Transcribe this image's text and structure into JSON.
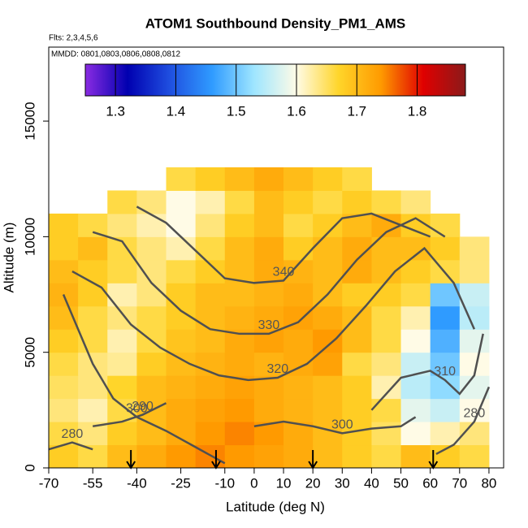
{
  "chart_data": {
    "type": "heatmap",
    "title": "ATOM1 Southbound Density_PM1_AMS",
    "subtitle": "Flts: 2,3,4,5,6",
    "annotation": "MMDD: 0801,0803,0806,0808,0812",
    "x_label": "Latitude (deg N)",
    "y_label": "Altitude (m)",
    "xlim": [
      -70,
      85
    ],
    "xticks": [
      -70,
      -55,
      -40,
      -25,
      -10,
      0,
      10,
      20,
      30,
      40,
      50,
      60,
      70,
      80
    ],
    "ylim": [
      0,
      18200
    ],
    "yticks": [
      0,
      5000,
      10000,
      15000
    ],
    "x_bins": [
      -70,
      -60,
      -50,
      -40,
      -30,
      -20,
      -10,
      0,
      10,
      20,
      30,
      40,
      50,
      60,
      70,
      80
    ],
    "y_bins": [
      0,
      1000,
      2000,
      3000,
      4000,
      5000,
      6000,
      7000,
      8000,
      9000,
      10000,
      11000,
      12000,
      13000
    ],
    "z": [
      [
        1.68,
        1.66,
        1.7,
        1.72,
        1.74,
        1.75,
        1.74,
        1.73,
        1.72,
        1.7,
        1.68,
        1.66,
        1.7,
        1.68,
        1.66
      ],
      [
        1.66,
        1.64,
        1.68,
        1.7,
        1.72,
        1.74,
        1.75,
        1.74,
        1.72,
        1.7,
        1.68,
        1.65,
        1.6,
        1.62,
        1.64
      ],
      [
        1.64,
        1.62,
        1.66,
        1.7,
        1.72,
        1.73,
        1.74,
        1.72,
        1.71,
        1.7,
        1.68,
        1.66,
        1.58,
        1.56,
        1.6
      ],
      [
        1.65,
        1.64,
        1.67,
        1.7,
        1.71,
        1.72,
        1.73,
        1.72,
        1.71,
        1.7,
        1.68,
        1.62,
        1.55,
        1.52,
        1.58
      ],
      [
        1.66,
        1.64,
        1.63,
        1.68,
        1.7,
        1.71,
        1.72,
        1.71,
        1.72,
        1.73,
        1.66,
        1.64,
        1.56,
        1.5,
        1.6
      ],
      [
        1.68,
        1.66,
        1.62,
        1.66,
        1.69,
        1.7,
        1.72,
        1.73,
        1.72,
        1.74,
        1.7,
        1.66,
        1.6,
        1.48,
        1.58
      ],
      [
        1.7,
        1.66,
        1.64,
        1.66,
        1.68,
        1.7,
        1.71,
        1.72,
        1.73,
        1.72,
        1.7,
        1.66,
        1.62,
        1.46,
        1.55
      ],
      [
        1.71,
        1.68,
        1.62,
        1.64,
        1.68,
        1.7,
        1.7,
        1.71,
        1.72,
        1.7,
        1.68,
        1.68,
        1.66,
        1.5,
        1.56
      ],
      [
        1.7,
        1.68,
        1.66,
        1.64,
        1.66,
        1.68,
        1.7,
        1.72,
        1.71,
        1.7,
        1.72,
        1.7,
        1.68,
        1.66,
        1.64
      ],
      [
        1.68,
        1.7,
        1.66,
        1.64,
        1.62,
        1.66,
        1.7,
        1.72,
        1.68,
        1.7,
        1.72,
        1.7,
        1.7,
        1.68,
        1.64
      ],
      [
        1.68,
        1.66,
        1.64,
        1.62,
        1.6,
        1.64,
        1.68,
        1.7,
        1.66,
        1.68,
        1.7,
        1.72,
        1.68,
        1.66,
        null
      ],
      [
        null,
        null,
        1.66,
        1.64,
        1.6,
        1.62,
        1.66,
        1.7,
        1.68,
        1.66,
        1.68,
        1.66,
        1.64,
        null,
        null
      ],
      [
        null,
        null,
        null,
        null,
        1.66,
        1.68,
        1.7,
        1.72,
        1.7,
        1.68,
        1.66,
        null,
        null,
        null,
        null
      ]
    ],
    "clim": [
      1.25,
      1.88
    ],
    "cticks": [
      1.3,
      1.4,
      1.5,
      1.6,
      1.7,
      1.8
    ],
    "colorscale": [
      "#8a2be2",
      "#0000b0",
      "#1f4fe0",
      "#2f9bff",
      "#9fe6ff",
      "#fffbe6",
      "#ffd52a",
      "#ff9a00",
      "#e00000",
      "#8b1a1a"
    ],
    "contour_color": "#505050",
    "contours": [
      {
        "level": 340,
        "x": [
          -40,
          -30,
          -20,
          -10,
          0,
          10,
          20,
          30,
          40,
          50,
          60
        ],
        "y": [
          11300,
          10600,
          9400,
          8200,
          8000,
          8100,
          9500,
          10800,
          11000,
          10500,
          10000
        ]
      },
      {
        "level": 330,
        "x": [
          -55,
          -45,
          -35,
          -25,
          -15,
          -5,
          5,
          15,
          25,
          35,
          45,
          55,
          65
        ],
        "y": [
          10200,
          9800,
          8000,
          6800,
          6000,
          5800,
          5800,
          6300,
          7500,
          9000,
          10200,
          10800,
          10000
        ]
      },
      {
        "level": 320,
        "x": [
          -62,
          -52,
          -42,
          -32,
          -22,
          -12,
          -2,
          8,
          18,
          28,
          38,
          48,
          58,
          68,
          75
        ],
        "y": [
          8500,
          7800,
          6200,
          5200,
          4500,
          4000,
          3800,
          3900,
          4500,
          5600,
          7000,
          8500,
          9500,
          8000,
          6000
        ]
      },
      {
        "level": 310,
        "x": [
          40,
          50,
          60,
          65,
          70,
          75,
          78
        ],
        "y": [
          2500,
          3900,
          4200,
          3800,
          3200,
          4000,
          5800
        ]
      },
      {
        "level": 300,
        "x": [
          -65,
          -60,
          -55,
          -48,
          -40,
          -30,
          -20,
          -10
        ],
        "y": [
          7500,
          6000,
          4500,
          3000,
          2200,
          1600,
          900,
          200
        ]
      },
      {
        "level": 300,
        "x": [
          0,
          10,
          20,
          30,
          40,
          50,
          55
        ],
        "y": [
          1800,
          2000,
          1800,
          1500,
          1700,
          1800,
          2200
        ]
      },
      {
        "level": 290,
        "x": [
          -55,
          -45,
          -38,
          -30
        ],
        "y": [
          1800,
          2000,
          2300,
          2800
        ]
      },
      {
        "level": 280,
        "x": [
          -70,
          -62,
          -55
        ],
        "y": [
          800,
          1100,
          800
        ]
      },
      {
        "level": 280,
        "x": [
          62,
          68,
          75,
          80
        ],
        "y": [
          600,
          1000,
          2000,
          3500
        ]
      }
    ],
    "arrows_x": [
      -42,
      -13,
      20,
      61
    ]
  }
}
